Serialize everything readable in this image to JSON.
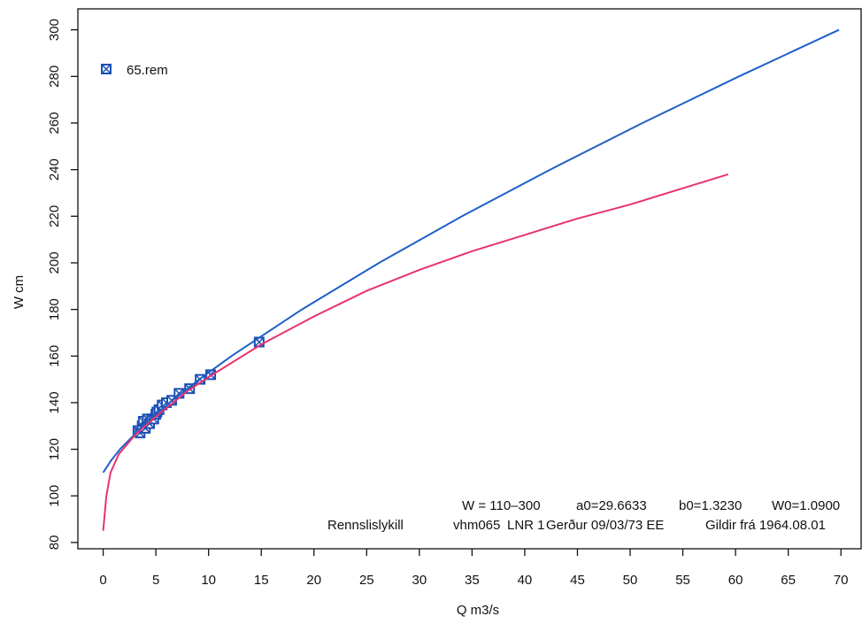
{
  "chart_data": {
    "type": "scatter",
    "x_label": "Q m3/s",
    "y_label": "W cm",
    "xlim": [
      -2.4,
      72
    ],
    "ylim": [
      77.3,
      309
    ],
    "xticks": [
      0,
      5,
      10,
      15,
      20,
      25,
      30,
      35,
      40,
      45,
      50,
      55,
      60,
      65,
      70
    ],
    "yticks": [
      80,
      100,
      120,
      140,
      160,
      180,
      200,
      220,
      240,
      260,
      280,
      300
    ],
    "grid": false,
    "series": [
      {
        "name": "65.rem",
        "type": "scatter",
        "color": "#1a4fb5",
        "x": [
          3.3,
          3.5,
          3.7,
          3.8,
          4.0,
          4.2,
          4.4,
          4.6,
          4.8,
          5.0,
          5.1,
          5.3,
          5.6,
          6.0,
          6.5,
          7.2,
          8.2,
          9.2,
          10.2,
          14.8
        ],
        "values": [
          128,
          127,
          130,
          132,
          129,
          133,
          131,
          133,
          133,
          135,
          136,
          137,
          139,
          140,
          141,
          144,
          146,
          150,
          152,
          166
        ]
      },
      {
        "type": "line",
        "color": "#1f5fc8",
        "x": [
          0,
          0.72,
          1.6,
          3.76,
          6.3,
          9.12,
          12.17,
          18.86,
          26.18,
          34.05,
          42.4,
          51.17,
          60.33,
          69.82
        ],
        "values": [
          110,
          115,
          120,
          130,
          140,
          150,
          160,
          180,
          200,
          220,
          240,
          260,
          280,
          300
        ]
      },
      {
        "type": "line",
        "color": "#e8336b",
        "x": [
          0,
          0.3,
          0.7,
          1.5,
          3,
          5,
          8,
          10,
          15,
          20,
          25,
          30,
          35,
          40,
          45,
          50,
          55,
          59.3
        ],
        "values": [
          85,
          100,
          110,
          118,
          126,
          134,
          145,
          151,
          165,
          177,
          188,
          197,
          205,
          212,
          219,
          225,
          232,
          238
        ]
      }
    ],
    "annotations": [
      {
        "color": "#1f5fc8",
        "texts": [
          "W = 110–300",
          "a0=29.6633",
          "b0=1.3230",
          "W0=1.0900"
        ]
      },
      {
        "color": "#e8336b",
        "texts": [
          "Rennslislykill",
          "vhm065",
          "LNR 1",
          "Gerður 09/03/73 EE",
          "Gildir frá 1964.08.01"
        ]
      }
    ]
  }
}
